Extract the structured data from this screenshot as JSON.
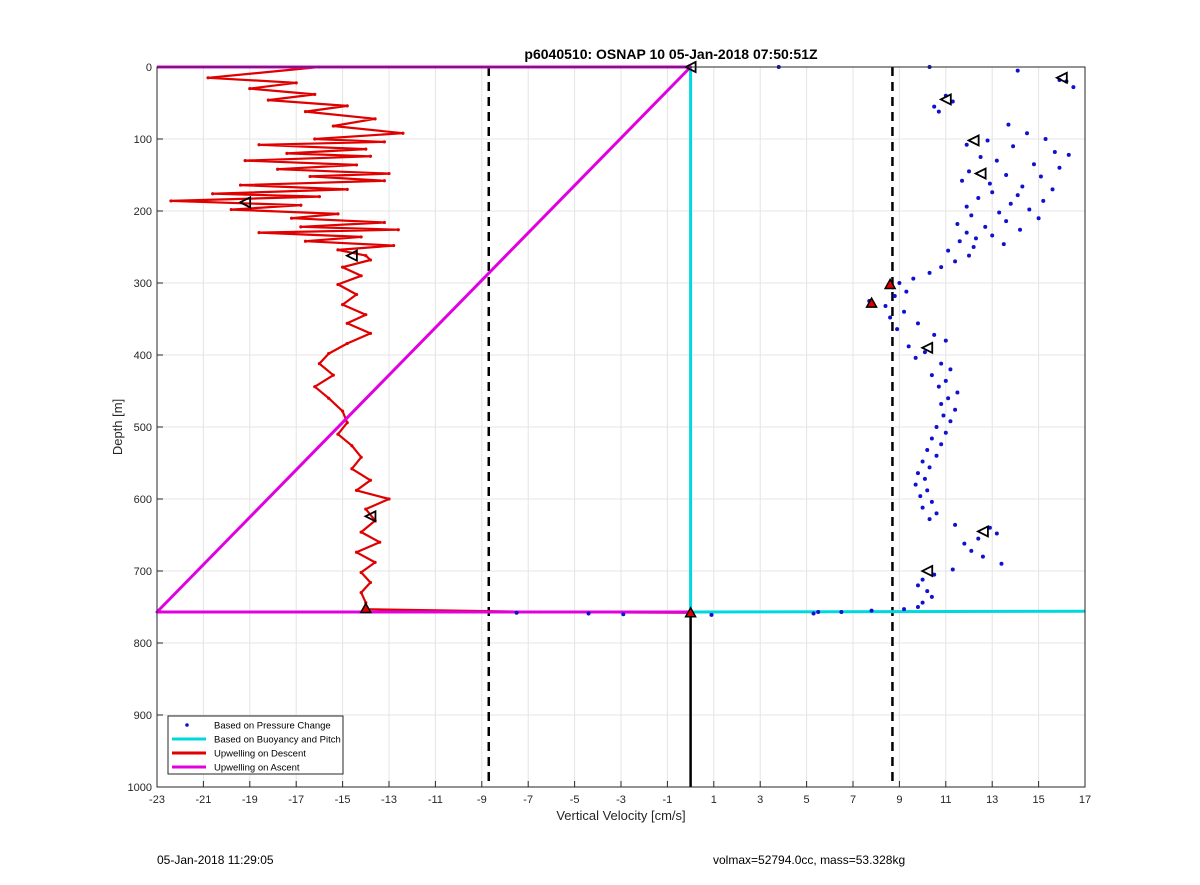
{
  "chart_data": {
    "type": "scatter",
    "title": "p6040510: OSNAP 10 05-Jan-2018 07:50:51Z",
    "xlabel": "Vertical Velocity [cm/s]",
    "ylabel": "Depth [m]",
    "xlim": [
      -23,
      17
    ],
    "ylim": [
      0,
      1000
    ],
    "y_reversed": true,
    "grid": true,
    "xticks": [
      -23,
      -21,
      -19,
      -17,
      -15,
      -13,
      -11,
      -9,
      -7,
      -5,
      -3,
      -1,
      1,
      3,
      5,
      7,
      9,
      11,
      13,
      15,
      17
    ],
    "yticks": [
      0,
      100,
      200,
      300,
      400,
      500,
      600,
      700,
      800,
      900,
      1000
    ],
    "legend_position": "bottom-left",
    "series": [
      {
        "name": "Based on Pressure Change",
        "style": "dots",
        "color": "#1010d0",
        "points": [
          [
            10.3,
            0
          ],
          [
            14.1,
            5
          ],
          [
            16.2,
            20
          ],
          [
            16.5,
            28
          ],
          [
            15.9,
            18
          ],
          [
            11.0,
            40
          ],
          [
            10.5,
            55
          ],
          [
            11.3,
            48
          ],
          [
            10.7,
            62
          ],
          [
            13.7,
            80
          ],
          [
            15.3,
            100
          ],
          [
            14.5,
            92
          ],
          [
            12.8,
            102
          ],
          [
            13.9,
            110
          ],
          [
            15.7,
            118
          ],
          [
            16.3,
            122
          ],
          [
            11.9,
            108
          ],
          [
            12.5,
            125
          ],
          [
            13.2,
            130
          ],
          [
            14.8,
            135
          ],
          [
            15.9,
            140
          ],
          [
            12.0,
            145
          ],
          [
            13.6,
            150
          ],
          [
            15.1,
            152
          ],
          [
            11.7,
            158
          ],
          [
            12.9,
            162
          ],
          [
            14.3,
            166
          ],
          [
            15.6,
            170
          ],
          [
            13.0,
            174
          ],
          [
            14.1,
            178
          ],
          [
            12.4,
            182
          ],
          [
            15.2,
            186
          ],
          [
            13.8,
            190
          ],
          [
            11.9,
            194
          ],
          [
            14.6,
            198
          ],
          [
            13.3,
            202
          ],
          [
            12.1,
            206
          ],
          [
            15.0,
            210
          ],
          [
            13.6,
            214
          ],
          [
            11.5,
            218
          ],
          [
            12.7,
            222
          ],
          [
            14.2,
            226
          ],
          [
            11.9,
            230
          ],
          [
            13.0,
            234
          ],
          [
            12.3,
            238
          ],
          [
            11.6,
            242
          ],
          [
            13.5,
            246
          ],
          [
            12.2,
            250
          ],
          [
            11.1,
            255
          ],
          [
            12.0,
            262
          ],
          [
            11.4,
            270
          ],
          [
            10.8,
            278
          ],
          [
            10.3,
            286
          ],
          [
            9.6,
            294
          ],
          [
            9.0,
            300
          ],
          [
            8.7,
            306
          ],
          [
            9.3,
            312
          ],
          [
            8.8,
            318
          ],
          [
            7.7,
            325
          ],
          [
            8.4,
            332
          ],
          [
            9.2,
            340
          ],
          [
            8.6,
            348
          ],
          [
            9.8,
            356
          ],
          [
            8.9,
            364
          ],
          [
            10.5,
            372
          ],
          [
            11.0,
            380
          ],
          [
            9.4,
            388
          ],
          [
            10.1,
            396
          ],
          [
            9.7,
            404
          ],
          [
            10.8,
            412
          ],
          [
            11.2,
            420
          ],
          [
            10.4,
            428
          ],
          [
            11.0,
            436
          ],
          [
            10.7,
            444
          ],
          [
            11.5,
            452
          ],
          [
            11.1,
            460
          ],
          [
            10.8,
            468
          ],
          [
            11.4,
            476
          ],
          [
            10.9,
            484
          ],
          [
            11.2,
            492
          ],
          [
            10.6,
            500
          ],
          [
            11.0,
            508
          ],
          [
            10.4,
            516
          ],
          [
            10.8,
            524
          ],
          [
            10.2,
            532
          ],
          [
            10.6,
            540
          ],
          [
            10.0,
            548
          ],
          [
            10.3,
            556
          ],
          [
            9.8,
            564
          ],
          [
            10.1,
            572
          ],
          [
            9.7,
            580
          ],
          [
            10.2,
            588
          ],
          [
            9.9,
            596
          ],
          [
            10.4,
            604
          ],
          [
            10.0,
            612
          ],
          [
            10.6,
            620
          ],
          [
            10.3,
            628
          ],
          [
            11.4,
            636
          ],
          [
            12.9,
            640
          ],
          [
            13.2,
            648
          ],
          [
            12.4,
            655
          ],
          [
            11.8,
            662
          ],
          [
            12.1,
            672
          ],
          [
            12.6,
            680
          ],
          [
            13.4,
            690
          ],
          [
            11.3,
            698
          ],
          [
            10.5,
            705
          ],
          [
            10.0,
            712
          ],
          [
            9.8,
            720
          ],
          [
            10.2,
            728
          ],
          [
            10.4,
            736
          ],
          [
            10.0,
            744
          ],
          [
            9.8,
            750
          ],
          [
            9.2,
            753
          ],
          [
            7.8,
            755
          ],
          [
            6.5,
            757
          ],
          [
            5.5,
            757
          ],
          [
            5.3,
            759
          ],
          [
            0.9,
            761
          ],
          [
            -2.9,
            760
          ],
          [
            -4.4,
            759
          ],
          [
            -7.5,
            758
          ],
          [
            3.8,
            0
          ]
        ]
      },
      {
        "name": "Based on Buoyancy and Pitch",
        "style": "line",
        "color": "#00d8e0",
        "points": [
          [
            0.0,
            0
          ],
          [
            0.0,
            757
          ],
          [
            17.0,
            756
          ]
        ]
      },
      {
        "name": "Upwelling on Descent",
        "style": "line",
        "color": "#e00000",
        "points": [
          [
            -16.0,
            0
          ],
          [
            -20.8,
            15
          ],
          [
            -17.0,
            22
          ],
          [
            -19.0,
            30
          ],
          [
            -16.2,
            38
          ],
          [
            -18.2,
            46
          ],
          [
            -14.8,
            54
          ],
          [
            -16.6,
            62
          ],
          [
            -13.6,
            72
          ],
          [
            -15.4,
            82
          ],
          [
            -12.4,
            92
          ],
          [
            -16.2,
            100
          ],
          [
            -13.2,
            104
          ],
          [
            -18.6,
            108
          ],
          [
            -14.0,
            114
          ],
          [
            -17.4,
            120
          ],
          [
            -13.8,
            124
          ],
          [
            -19.2,
            130
          ],
          [
            -14.4,
            136
          ],
          [
            -17.8,
            142
          ],
          [
            -13.0,
            148
          ],
          [
            -16.4,
            152
          ],
          [
            -13.2,
            158
          ],
          [
            -19.4,
            164
          ],
          [
            -14.8,
            170
          ],
          [
            -20.6,
            176
          ],
          [
            -16.0,
            180
          ],
          [
            -22.4,
            186
          ],
          [
            -16.8,
            192
          ],
          [
            -19.8,
            198
          ],
          [
            -15.2,
            204
          ],
          [
            -17.2,
            210
          ],
          [
            -13.2,
            216
          ],
          [
            -16.8,
            222
          ],
          [
            -12.6,
            226
          ],
          [
            -18.6,
            230
          ],
          [
            -14.2,
            236
          ],
          [
            -16.6,
            242
          ],
          [
            -12.8,
            248
          ],
          [
            -15.2,
            254
          ],
          [
            -14.0,
            262
          ],
          [
            -13.8,
            268
          ],
          [
            -15.0,
            278
          ],
          [
            -14.2,
            290
          ],
          [
            -15.2,
            302
          ],
          [
            -14.4,
            316
          ],
          [
            -15.0,
            330
          ],
          [
            -14.0,
            344
          ],
          [
            -14.8,
            356
          ],
          [
            -13.8,
            370
          ],
          [
            -14.8,
            384
          ],
          [
            -15.6,
            398
          ],
          [
            -16.0,
            412
          ],
          [
            -15.4,
            428
          ],
          [
            -16.2,
            444
          ],
          [
            -15.6,
            460
          ],
          [
            -15.0,
            478
          ],
          [
            -14.8,
            494
          ],
          [
            -15.2,
            510
          ],
          [
            -14.6,
            526
          ],
          [
            -14.2,
            542
          ],
          [
            -14.6,
            558
          ],
          [
            -13.8,
            574
          ],
          [
            -14.4,
            588
          ],
          [
            -13.0,
            600
          ],
          [
            -14.0,
            614
          ],
          [
            -13.6,
            630
          ],
          [
            -14.2,
            646
          ],
          [
            -13.4,
            660
          ],
          [
            -14.4,
            674
          ],
          [
            -13.6,
            688
          ],
          [
            -14.2,
            702
          ],
          [
            -13.8,
            716
          ],
          [
            -14.2,
            730
          ],
          [
            -14.0,
            744
          ],
          [
            -14.0,
            753
          ],
          [
            -6.5,
            757
          ],
          [
            0.0,
            758
          ]
        ]
      },
      {
        "name": "Upwelling on Ascent",
        "style": "line",
        "color": "#e000e0",
        "points": [
          [
            -23.0,
            0
          ],
          [
            0.0,
            0
          ],
          [
            -23.0,
            757
          ],
          [
            0.0,
            757
          ]
        ]
      }
    ],
    "reference_lines": {
      "vertical_dashed": [
        -8.7,
        8.7
      ],
      "solid_black_segment": {
        "x": 0.0,
        "from_depth": 757,
        "to_depth": 1000
      }
    },
    "markers": {
      "triangle_hollow": [
        [
          0.0,
          0
        ],
        [
          16.0,
          15
        ],
        [
          11.0,
          45
        ],
        [
          12.2,
          102
        ],
        [
          12.5,
          148
        ],
        [
          -19.2,
          188
        ],
        [
          -14.6,
          262
        ],
        [
          10.2,
          390
        ],
        [
          -13.8,
          624
        ],
        [
          12.6,
          645
        ],
        [
          10.2,
          700
        ]
      ],
      "triangle_red": [
        [
          -14.0,
          752
        ],
        [
          0.0,
          758
        ],
        [
          7.8,
          328
        ],
        [
          8.6,
          302
        ]
      ]
    }
  },
  "footer": {
    "left": "05-Jan-2018 11:29:05",
    "right": "volmax=52794.0cc, mass=53.328kg"
  }
}
